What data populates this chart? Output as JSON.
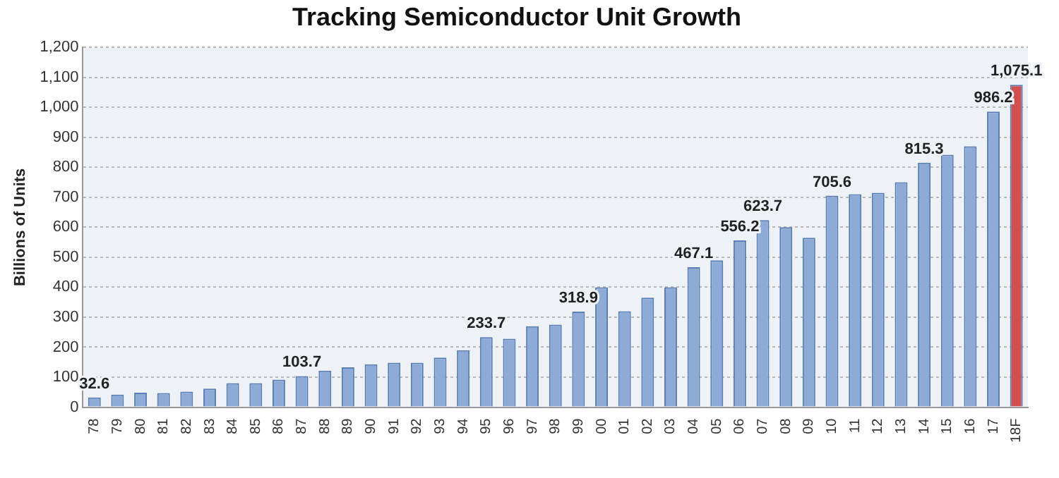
{
  "chart_data": {
    "type": "bar",
    "title": "Tracking Semiconductor Unit Growth",
    "ylabel": "Billions of Units",
    "categories": [
      "78",
      "79",
      "80",
      "81",
      "82",
      "83",
      "84",
      "85",
      "86",
      "87",
      "88",
      "89",
      "90",
      "91",
      "92",
      "93",
      "94",
      "95",
      "96",
      "97",
      "98",
      "99",
      "00",
      "01",
      "02",
      "03",
      "04",
      "05",
      "06",
      "07",
      "08",
      "09",
      "10",
      "11",
      "12",
      "13",
      "14",
      "15",
      "16",
      "17",
      "18F"
    ],
    "values": [
      32.6,
      42,
      48,
      47,
      52,
      62,
      80,
      80,
      92,
      103.7,
      122,
      133,
      143,
      148,
      148,
      165,
      190,
      233.7,
      228,
      270,
      275,
      318.9,
      400,
      320,
      365,
      400,
      467.1,
      490,
      556.2,
      623.7,
      600,
      565,
      705.6,
      710,
      715,
      750,
      815.3,
      842,
      870,
      986.2,
      1075.1
    ],
    "value_labels": [
      "32.6",
      null,
      null,
      null,
      null,
      null,
      null,
      null,
      null,
      "103.7",
      null,
      null,
      null,
      null,
      null,
      null,
      null,
      "233.7",
      null,
      null,
      null,
      "318.9",
      null,
      null,
      null,
      null,
      "467.1",
      null,
      "556.2",
      "623.7",
      null,
      null,
      "705.6",
      null,
      null,
      null,
      "815.3",
      null,
      null,
      "986.2",
      "1,075.1"
    ],
    "colors": [
      "#8eaad6",
      "#8eaad6",
      "#8eaad6",
      "#8eaad6",
      "#8eaad6",
      "#8eaad6",
      "#8eaad6",
      "#8eaad6",
      "#8eaad6",
      "#8eaad6",
      "#8eaad6",
      "#8eaad6",
      "#8eaad6",
      "#8eaad6",
      "#8eaad6",
      "#8eaad6",
      "#8eaad6",
      "#8eaad6",
      "#8eaad6",
      "#8eaad6",
      "#8eaad6",
      "#8eaad6",
      "#8eaad6",
      "#8eaad6",
      "#8eaad6",
      "#8eaad6",
      "#8eaad6",
      "#8eaad6",
      "#8eaad6",
      "#8eaad6",
      "#8eaad6",
      "#8eaad6",
      "#8eaad6",
      "#8eaad6",
      "#8eaad6",
      "#8eaad6",
      "#8eaad6",
      "#8eaad6",
      "#8eaad6",
      "#8eaad6",
      "#d0504f"
    ],
    "ylim": [
      0,
      1200
    ],
    "yticks": [
      0,
      100,
      200,
      300,
      400,
      500,
      600,
      700,
      800,
      900,
      {
        "value": 1000,
        "label": "1,000"
      },
      {
        "value": 1100,
        "label": "1,100"
      },
      {
        "value": 1200,
        "label": "1,200"
      }
    ],
    "grid": "y",
    "legend": false
  }
}
